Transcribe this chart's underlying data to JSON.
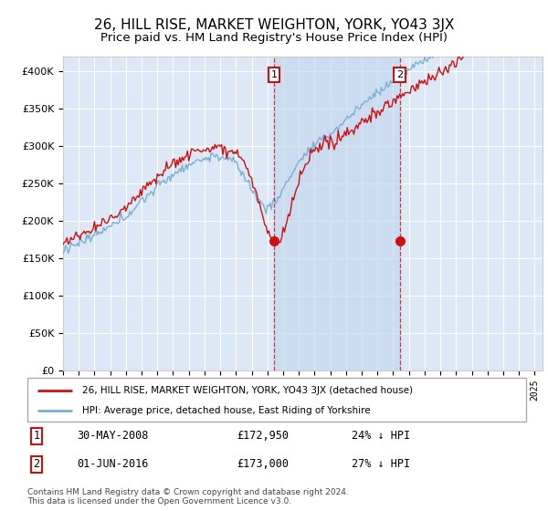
{
  "title": "26, HILL RISE, MARKET WEIGHTON, YORK, YO43 3JX",
  "subtitle": "Price paid vs. HM Land Registry's House Price Index (HPI)",
  "title_fontsize": 11,
  "subtitle_fontsize": 9.5,
  "background_color": "#ffffff",
  "plot_background": "#dce8f5",
  "grid_color": "#ffffff",
  "ylim": [
    0,
    420000
  ],
  "yticks": [
    0,
    50000,
    100000,
    150000,
    200000,
    250000,
    300000,
    350000,
    400000
  ],
  "ytick_labels": [
    "£0",
    "£50K",
    "£100K",
    "£150K",
    "£200K",
    "£250K",
    "£300K",
    "£350K",
    "£400K"
  ],
  "hpi_color": "#7ab0d4",
  "price_color": "#cc1111",
  "shade_color": "#c5d8ee",
  "marker1_x": 2008.42,
  "marker1_y": 172950,
  "marker2_x": 2016.42,
  "marker2_y": 173000,
  "legend_price_label": "26, HILL RISE, MARKET WEIGHTON, YORK, YO43 3JX (detached house)",
  "legend_hpi_label": "HPI: Average price, detached house, East Riding of Yorkshire",
  "table_row1": [
    "1",
    "30-MAY-2008",
    "£172,950",
    "24% ↓ HPI"
  ],
  "table_row2": [
    "2",
    "01-JUN-2016",
    "£173,000",
    "27% ↓ HPI"
  ],
  "footnote": "Contains HM Land Registry data © Crown copyright and database right 2024.\nThis data is licensed under the Open Government Licence v3.0.",
  "xmin": 1995,
  "xmax": 2025.5
}
